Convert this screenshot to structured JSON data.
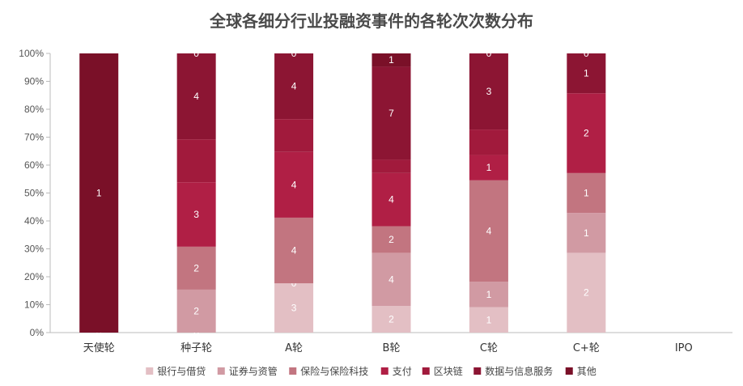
{
  "chart_data": {
    "type": "bar",
    "stacked": true,
    "normalized": true,
    "title": "全球各细分行业投融资事件的各轮次次数分布",
    "categories": [
      "天使轮",
      "种子轮",
      "A轮",
      "B轮",
      "C轮",
      "C+轮",
      "IPO"
    ],
    "yticks": [
      "0%",
      "10%",
      "20%",
      "30%",
      "40%",
      "50%",
      "60%",
      "70%",
      "80%",
      "90%",
      "100%"
    ],
    "legend_position": "bottom",
    "series": [
      {
        "name": "银行与借贷",
        "color": "#e3bfc4",
        "values": [
          0,
          0,
          3,
          2,
          1,
          2,
          0
        ],
        "show_labels": [
          true,
          true,
          true,
          true,
          true,
          true,
          false
        ]
      },
      {
        "name": "证券与资管",
        "color": "#d19aa3",
        "values": [
          0,
          2,
          0,
          4,
          1,
          1,
          0
        ],
        "show_labels": [
          false,
          true,
          true,
          true,
          true,
          true,
          false
        ]
      },
      {
        "name": "保险与保险科技",
        "color": "#c27580",
        "values": [
          0,
          2,
          4,
          2,
          4,
          1,
          0
        ],
        "show_labels": [
          false,
          true,
          true,
          true,
          true,
          true,
          false
        ]
      },
      {
        "name": "支付",
        "color": "#b01f45",
        "values": [
          0,
          3,
          4,
          4,
          1,
          2,
          0
        ],
        "show_labels": [
          false,
          true,
          true,
          true,
          true,
          true,
          false
        ]
      },
      {
        "name": "区块链",
        "color": "#a11a3c",
        "values": [
          0,
          2,
          2,
          1,
          1,
          0,
          0
        ],
        "show_labels": [
          false,
          false,
          false,
          false,
          false,
          false,
          false
        ]
      },
      {
        "name": "数据与信息服务",
        "color": "#8c1533",
        "values": [
          0,
          4,
          4,
          7,
          3,
          1,
          0
        ],
        "show_labels": [
          false,
          true,
          true,
          true,
          true,
          true,
          false
        ]
      },
      {
        "name": "其他",
        "color": "#7a1028",
        "values": [
          1,
          0,
          0,
          1,
          0,
          0,
          0
        ],
        "show_labels": [
          true,
          true,
          true,
          true,
          true,
          true,
          false
        ]
      }
    ]
  }
}
